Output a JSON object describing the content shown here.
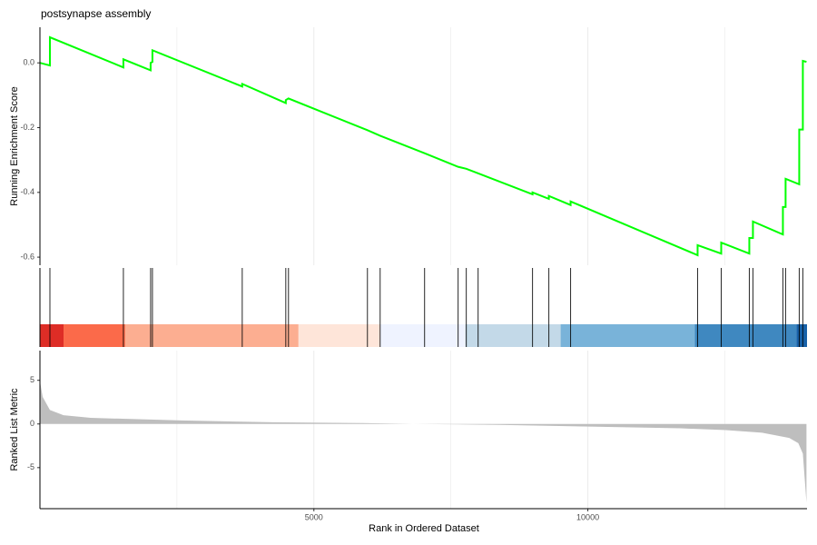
{
  "chart_data": [
    {
      "type": "line",
      "title": "postsynapse assembly",
      "ylabel": "Running Enrichment Score",
      "xlim": [
        0,
        14000
      ],
      "ylim": [
        -0.625,
        0.11
      ],
      "yticks": [
        {
          "value": 0,
          "label": "0.0"
        },
        -0.2,
        -0.4,
        -0.6
      ],
      "color": "#00ff00",
      "x": [
        0,
        182,
        182,
        1523,
        1523,
        2020,
        2020,
        2053,
        2053,
        3692,
        3692,
        4487,
        4487,
        4536,
        5977,
        6209,
        7020,
        7632,
        7781,
        7997,
        8990,
        8990,
        9288,
        9288,
        9685,
        9685,
        12003,
        12003,
        12434,
        12434,
        12947,
        12947,
        13013,
        13013,
        13560,
        13560,
        13609,
        13609,
        13858,
        13858,
        13924,
        13924,
        13990
      ],
      "values": [
        0,
        -0.008,
        0.079,
        -0.014,
        0.011,
        -0.023,
        0,
        0.003,
        0.039,
        -0.073,
        -0.065,
        -0.124,
        -0.115,
        -0.11,
        -0.208,
        -0.225,
        -0.279,
        -0.321,
        -0.327,
        -0.341,
        -0.406,
        -0.4,
        -0.42,
        -0.411,
        -0.439,
        -0.428,
        -0.594,
        -0.563,
        -0.589,
        -0.555,
        -0.589,
        -0.541,
        -0.541,
        -0.49,
        -0.53,
        -0.445,
        -0.445,
        -0.358,
        -0.375,
        -0.206,
        -0.206,
        0.006,
        0.003
      ]
    },
    {
      "type": "rug",
      "xlim": [
        0,
        14000
      ],
      "hits": [
        182,
        1523,
        2020,
        2053,
        3692,
        4487,
        4536,
        5977,
        6209,
        7020,
        7632,
        7781,
        7997,
        8990,
        9288,
        9685,
        12003,
        12434,
        12947,
        13013,
        13560,
        13609,
        13858,
        13924
      ],
      "band_edges": [
        0,
        431,
        1556,
        4719,
        6209,
        7765,
        9503,
        11954,
        13808,
        14000
      ],
      "band_colors": [
        "#de2d26",
        "#fb6a4a",
        "#fcae91",
        "#fee5d9",
        "#eff3ff",
        "#c3d9e8",
        "#79b3d9",
        "#3f88c0",
        "#1761a8"
      ]
    },
    {
      "type": "area",
      "ylabel": "Ranked List Metric",
      "xlabel": "Rank in Ordered Dataset",
      "xlim": [
        0,
        14000
      ],
      "ylim": [
        -9.7,
        8.4
      ],
      "xticks": [
        5000,
        10000
      ],
      "x_minor_ticks": [
        2500,
        7500,
        12500
      ],
      "yticks": [
        5,
        0,
        -5
      ],
      "color": "#bebebe",
      "x": [
        0,
        50,
        182,
        430,
        927,
        2583,
        4238,
        5894,
        6805,
        8377,
        10033,
        11689,
        12517,
        13179,
        13675,
        13841,
        13924,
        13990
      ],
      "values": [
        4.9,
        3.1,
        1.6,
        1.0,
        0.7,
        0.4,
        0.2,
        0.1,
        0,
        -0.1,
        -0.3,
        -0.5,
        -0.7,
        -1.0,
        -1.6,
        -2.2,
        -3.4,
        -9.0
      ]
    }
  ]
}
